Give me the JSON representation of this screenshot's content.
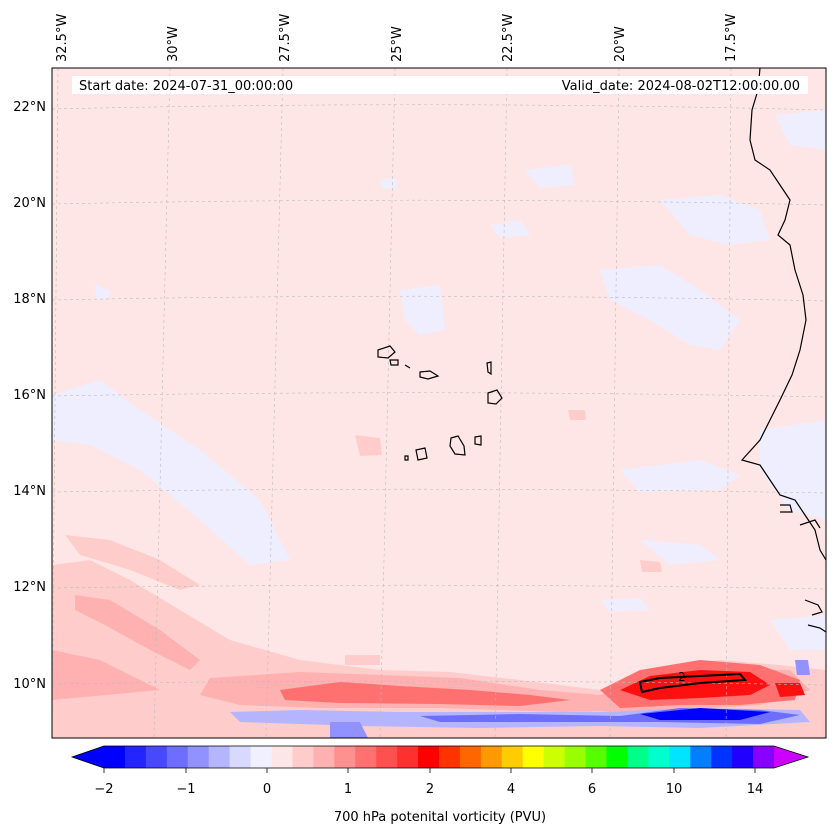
{
  "header": {
    "start_date": "Start date: 2024-07-31_00:00:00",
    "valid_date": "Valid_date: 2024-08-02T12:00:00.00"
  },
  "map": {
    "lon_labels": [
      "32.5°W",
      "30°W",
      "27.5°W",
      "25°W",
      "22.5°W",
      "20°W",
      "17.5°W"
    ],
    "lat_labels": [
      "22°N",
      "20°N",
      "18°N",
      "16°N",
      "14°N",
      "12°N",
      "10°N"
    ],
    "contour_label": "2",
    "colors": {
      "background_field": "#ffe6e6",
      "negative_field": "#eeeeff",
      "coastline": "#000000"
    }
  },
  "colorbar": {
    "tick_labels": [
      "−2",
      "−1",
      "0",
      "1",
      "2",
      "4",
      "6",
      "10",
      "14"
    ],
    "label": "700 hPa potenital vorticity (PVU)",
    "colors": [
      "#0000ff",
      "#2424ff",
      "#4848ff",
      "#6d6dff",
      "#9191ff",
      "#b5b5ff",
      "#d9d9ff",
      "#f0f0ff",
      "#ffe6e6",
      "#ffcccc",
      "#ffb0b0",
      "#ff9090",
      "#ff7070",
      "#ff5050",
      "#ff3030",
      "#ff0000",
      "#ff3300",
      "#ff6600",
      "#ff9900",
      "#ffcc00",
      "#ffff00",
      "#ccff00",
      "#99ff00",
      "#55ff00",
      "#00ff00",
      "#00ff88",
      "#00ffcc",
      "#00e5ff",
      "#0080ff",
      "#0033ff",
      "#2200ff",
      "#8800ff"
    ],
    "extend_colors": {
      "low": "#0000ff",
      "high": "#cc00ff"
    }
  }
}
